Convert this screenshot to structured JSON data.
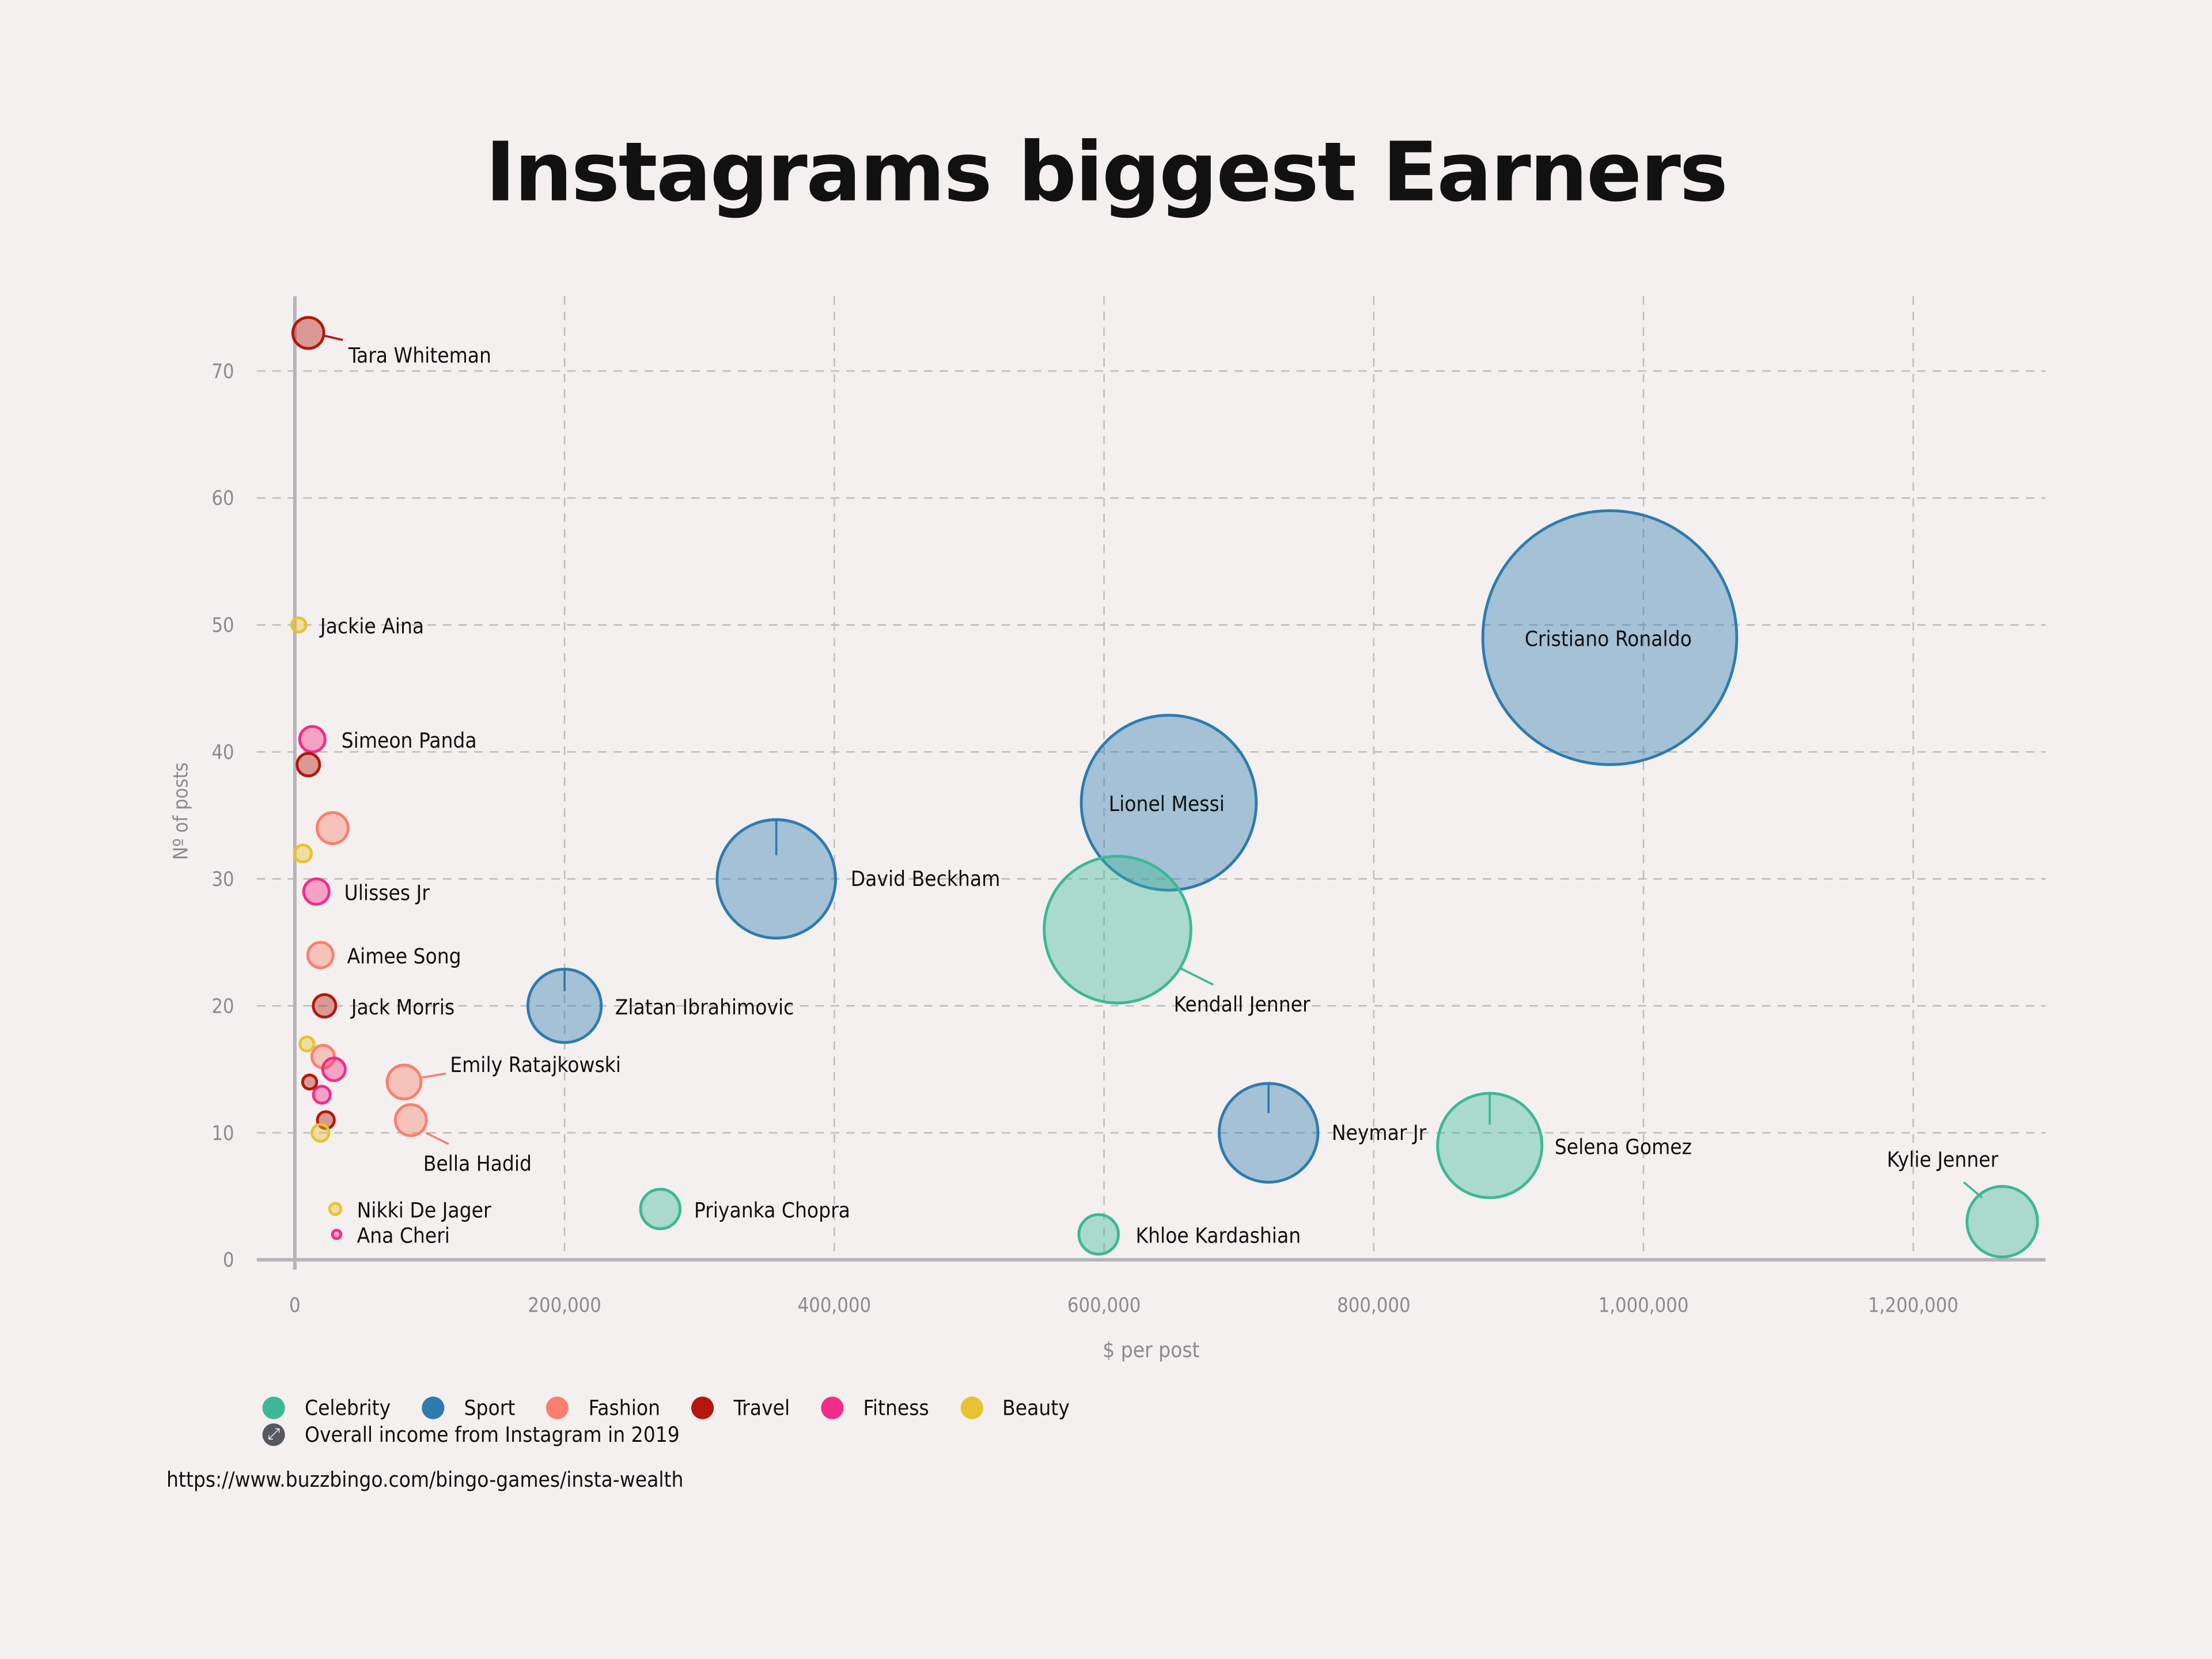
{
  "title": "Instagrams biggest Earners",
  "source": "https://www.buzzbingo.com/bingo-games/insta-wealth",
  "colors": {
    "Celebrity": "#3db896",
    "Sport": "#2e7bb0",
    "Fashion": "#fa7f6e",
    "Travel": "#b5170c",
    "Fitness": "#f42c89",
    "Beauty": "#e8c331"
  },
  "legend": {
    "items": [
      {
        "label": "Celebrity",
        "color": "#3db896"
      },
      {
        "label": "Sport",
        "color": "#2e7bb0"
      },
      {
        "label": "Fashion",
        "color": "#fa7f6e"
      },
      {
        "label": "Travel",
        "color": "#b5170c"
      },
      {
        "label": "Fitness",
        "color": "#f42c89"
      },
      {
        "label": "Beauty",
        "color": "#e8c331"
      }
    ],
    "size_label": "Overall income from Instagram in 2019",
    "size_icon": "resize-arrow-icon"
  },
  "chart_data": {
    "type": "scatter",
    "title": "Instagrams biggest Earners",
    "xlabel": "$ per post",
    "ylabel": "Nº of posts",
    "xlim": [
      -30000,
      1300000
    ],
    "ylim": [
      0,
      76
    ],
    "x_ticks": [
      "0",
      "200,000",
      "400,000",
      "600,000",
      "800,000",
      "1,000,000",
      "1,200,000"
    ],
    "y_ticks": [
      "0",
      "10",
      "20",
      "30",
      "40",
      "50",
      "60",
      "70"
    ],
    "grid": true,
    "size_encoding": "Overall income from Instagram in 2019",
    "points": [
      {
        "name": "Cristiano Ronaldo",
        "category": "Sport",
        "x": 975000,
        "y": 49,
        "r": 90,
        "label": true
      },
      {
        "name": "Lionel Messi",
        "category": "Sport",
        "x": 648000,
        "y": 36,
        "r": 62,
        "label": true
      },
      {
        "name": "Kendall Jenner",
        "category": "Celebrity",
        "x": 610000,
        "y": 26,
        "r": 52,
        "label": true
      },
      {
        "name": "David Beckham",
        "category": "Sport",
        "x": 357000,
        "y": 30,
        "r": 42,
        "label": true
      },
      {
        "name": "Zlatan Ibrahimovic",
        "category": "Sport",
        "x": 200000,
        "y": 20,
        "r": 26,
        "label": true
      },
      {
        "name": "Neymar Jr",
        "category": "Sport",
        "x": 722000,
        "y": 10,
        "r": 35,
        "label": true
      },
      {
        "name": "Selena Gomez",
        "category": "Celebrity",
        "x": 886000,
        "y": 9,
        "r": 37,
        "label": true
      },
      {
        "name": "Kylie Jenner",
        "category": "Celebrity",
        "x": 1266000,
        "y": 3,
        "r": 25,
        "label": true
      },
      {
        "name": "Khloe Kardashian",
        "category": "Celebrity",
        "x": 596000,
        "y": 2,
        "r": 14,
        "label": true
      },
      {
        "name": "Priyanka Chopra",
        "category": "Celebrity",
        "x": 271000,
        "y": 4,
        "r": 14,
        "label": true
      },
      {
        "name": "Tara Whiteman",
        "category": "Travel",
        "x": 10000,
        "y": 73,
        "r": 11,
        "label": true
      },
      {
        "name": "Jackie Aina",
        "category": "Beauty",
        "x": 3000,
        "y": 50,
        "r": 5,
        "label": true
      },
      {
        "name": "Simeon Panda",
        "category": "Fitness",
        "x": 13000,
        "y": 41,
        "r": 9,
        "label": true
      },
      {
        "name": "",
        "category": "Travel",
        "x": 10000,
        "y": 39,
        "r": 8,
        "label": false
      },
      {
        "name": "",
        "category": "Fashion",
        "x": 28000,
        "y": 34,
        "r": 11,
        "label": false
      },
      {
        "name": "",
        "category": "Beauty",
        "x": 6000,
        "y": 32,
        "r": 6,
        "label": false
      },
      {
        "name": "Ulisses Jr",
        "category": "Fitness",
        "x": 16000,
        "y": 29,
        "r": 9,
        "label": true
      },
      {
        "name": "Aimee Song",
        "category": "Fashion",
        "x": 19000,
        "y": 24,
        "r": 9,
        "label": true
      },
      {
        "name": "Jack Morris",
        "category": "Travel",
        "x": 22000,
        "y": 20,
        "r": 8,
        "label": true
      },
      {
        "name": "",
        "category": "Beauty",
        "x": 9000,
        "y": 17,
        "r": 5,
        "label": false
      },
      {
        "name": "",
        "category": "Fashion",
        "x": 21000,
        "y": 16,
        "r": 8,
        "label": false
      },
      {
        "name": "",
        "category": "Fitness",
        "x": 29000,
        "y": 15,
        "r": 8,
        "label": false
      },
      {
        "name": "",
        "category": "Travel",
        "x": 11000,
        "y": 14,
        "r": 5,
        "label": false
      },
      {
        "name": "",
        "category": "Fitness",
        "x": 20000,
        "y": 13,
        "r": 6,
        "label": false
      },
      {
        "name": "Emily Ratajkowski",
        "category": "Fashion",
        "x": 81000,
        "y": 14,
        "r": 12,
        "label": true
      },
      {
        "name": "Bella Hadid",
        "category": "Fashion",
        "x": 86000,
        "y": 11,
        "r": 11,
        "label": true
      },
      {
        "name": "",
        "category": "Travel",
        "x": 23000,
        "y": 11,
        "r": 6,
        "label": false
      },
      {
        "name": "",
        "category": "Beauty",
        "x": 19000,
        "y": 10,
        "r": 6,
        "label": false
      },
      {
        "name": "Nikki De Jager",
        "category": "Beauty",
        "x": 30000,
        "y": 4,
        "r": 4,
        "label": true
      },
      {
        "name": "Ana Cheri",
        "category": "Fitness",
        "x": 31000,
        "y": 2,
        "r": 3,
        "label": true
      }
    ]
  }
}
